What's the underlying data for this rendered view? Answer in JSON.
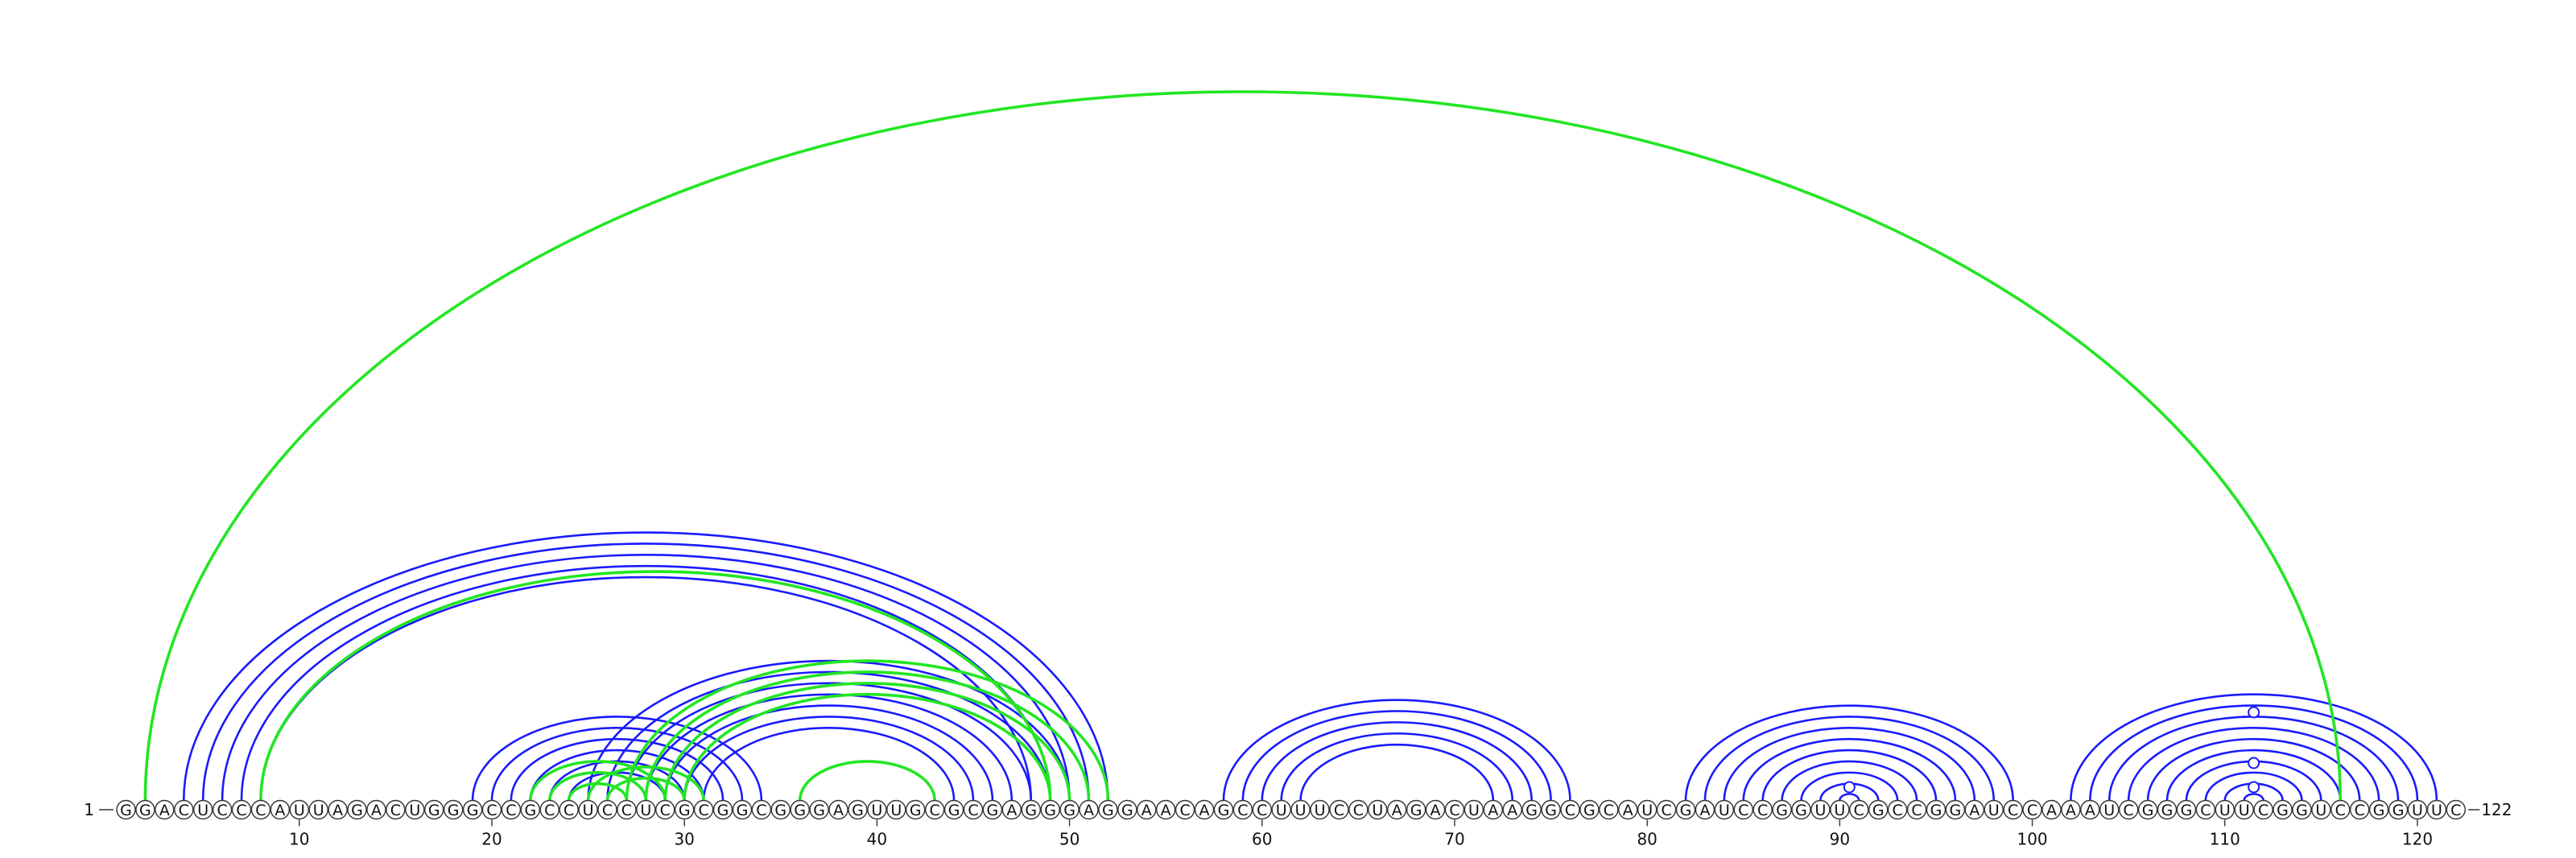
{
  "sequence": "GGACUCCCAUUAGACUGGGCCGCCUCCUCGCGGCGGGAGUUGCGCGAGGGAGGAACAGCCUUUCCUAGACUAAGGCGCAUCGAUCCGGUUCGCCGGAUCCAAAUCGGGCUUCGGUCCGGUUC",
  "start_label": "1",
  "end_label": "122",
  "tick_labels": [
    "10",
    "20",
    "30",
    "40",
    "50",
    "60",
    "70",
    "80",
    "90",
    "100",
    "110",
    "120"
  ],
  "tick_positions": [
    10,
    20,
    30,
    40,
    50,
    60,
    70,
    80,
    90,
    100,
    110,
    120
  ],
  "colors": {
    "reference_arc": "#1a1aff",
    "predicted_arc": "#22e622",
    "nucleotide_stroke": "#333333",
    "backbone": "#333333"
  },
  "blue_pairs": [
    [
      4,
      52
    ],
    [
      5,
      51
    ],
    [
      6,
      50
    ],
    [
      7,
      49
    ],
    [
      8,
      48
    ],
    [
      19,
      34
    ],
    [
      20,
      33
    ],
    [
      21,
      32
    ],
    [
      22,
      31
    ],
    [
      23,
      30
    ],
    [
      24,
      29
    ],
    [
      25,
      50
    ],
    [
      26,
      49
    ],
    [
      27,
      48
    ],
    [
      28,
      47
    ],
    [
      29,
      46
    ],
    [
      30,
      45
    ],
    [
      31,
      44
    ],
    [
      58,
      76
    ],
    [
      59,
      75
    ],
    [
      60,
      74
    ],
    [
      61,
      73
    ],
    [
      62,
      72
    ],
    [
      82,
      99
    ],
    [
      83,
      98
    ],
    [
      84,
      97
    ],
    [
      85,
      96
    ],
    [
      86,
      95
    ],
    [
      87,
      94
    ],
    [
      88,
      93
    ],
    [
      89,
      92
    ],
    [
      90,
      91
    ],
    [
      102,
      121
    ],
    [
      103,
      120
    ],
    [
      104,
      119
    ],
    [
      105,
      118
    ],
    [
      106,
      117
    ],
    [
      107,
      116
    ],
    [
      108,
      115
    ],
    [
      109,
      114
    ],
    [
      110,
      113
    ],
    [
      111,
      112
    ]
  ],
  "green_pairs": [
    [
      2,
      116
    ],
    [
      8,
      49
    ],
    [
      22,
      29
    ],
    [
      23,
      28
    ],
    [
      24,
      27
    ],
    [
      25,
      31
    ],
    [
      26,
      30
    ],
    [
      27,
      52
    ],
    [
      28,
      51
    ],
    [
      29,
      50
    ],
    [
      30,
      49
    ],
    [
      36,
      43
    ]
  ],
  "hairpin_markers": [
    90.5,
    111.5,
    111.5,
    111.5
  ]
}
